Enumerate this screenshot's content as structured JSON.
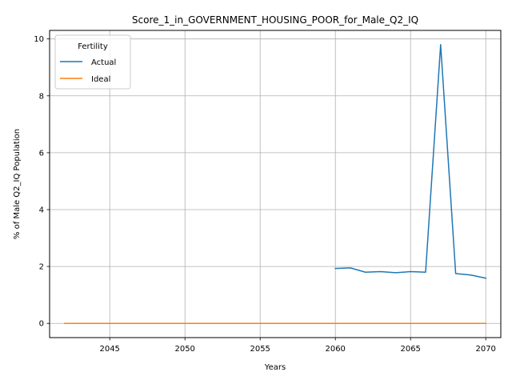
{
  "chart_data": {
    "type": "line",
    "title": "Score_1_in_GOVERNMENT_HOUSING_POOR_for_Male_Q2_IQ",
    "xlabel": "Years",
    "ylabel": "% of Male Q2_IQ Population",
    "xlim": [
      2041,
      2071
    ],
    "ylim": [
      -0.5,
      10.3
    ],
    "xticks": [
      2045,
      2050,
      2055,
      2060,
      2065,
      2070
    ],
    "yticks": [
      0,
      2,
      4,
      6,
      8,
      10
    ],
    "grid": true,
    "legend": {
      "title": "Fertility",
      "placement": "top-left"
    },
    "series": [
      {
        "name": "Actual",
        "color": "#1f77b4",
        "x": [
          2060,
          2061,
          2062,
          2063,
          2064,
          2065,
          2066,
          2067,
          2068,
          2069,
          2070
        ],
        "y": [
          1.93,
          1.95,
          1.8,
          1.82,
          1.78,
          1.82,
          1.8,
          9.8,
          1.75,
          1.7,
          1.59
        ]
      },
      {
        "name": "Ideal",
        "color": "#ff7f0e",
        "x": [
          2042,
          2043,
          2044,
          2045,
          2046,
          2047,
          2048,
          2049,
          2050,
          2051,
          2052,
          2053,
          2054,
          2055,
          2056,
          2057,
          2058,
          2059,
          2060,
          2061,
          2062,
          2063,
          2064,
          2065,
          2066,
          2067,
          2068,
          2069,
          2070
        ],
        "y": [
          0,
          0,
          0,
          0,
          0,
          0,
          0,
          0,
          0,
          0,
          0,
          0,
          0,
          0,
          0,
          0,
          0,
          0,
          0,
          0,
          0,
          0,
          0,
          0,
          0,
          0,
          0,
          0,
          0
        ]
      }
    ]
  }
}
